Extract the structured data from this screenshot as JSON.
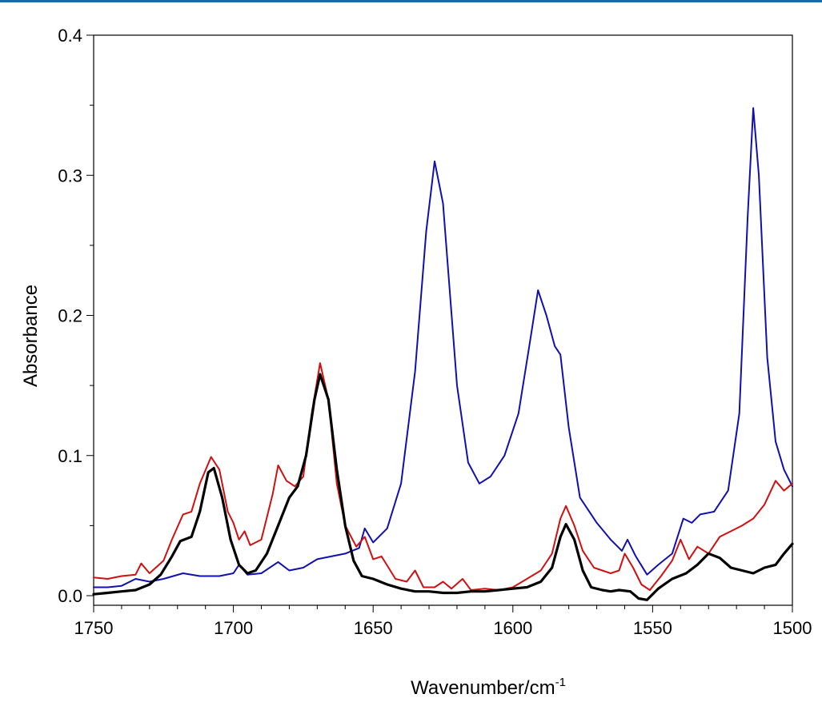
{
  "chart_data": {
    "type": "line",
    "title": "",
    "xlabel": "Wavenumber/cm",
    "xlabel_superscript": "-1",
    "ylabel": "Absorbance",
    "xlim": [
      1750,
      1500
    ],
    "ylim": [
      0,
      0.4
    ],
    "x_reversed": true,
    "grid": false,
    "legend": "none",
    "x_ticks": [
      1750,
      1700,
      1650,
      1600,
      1550,
      1500
    ],
    "x_tick_labels": [
      "1750",
      "1700",
      "1650",
      "1600",
      "1550",
      "1500"
    ],
    "y_ticks": [
      0,
      0.1,
      0.2,
      0.3,
      0.4
    ],
    "y_tick_labels": [
      "0.0",
      "0.1",
      "0.2",
      "0.3",
      "0.4"
    ],
    "series": [
      {
        "color": "#1010b0",
        "points": [
          [
            1750,
            0.006
          ],
          [
            1745,
            0.006
          ],
          [
            1740,
            0.007
          ],
          [
            1735,
            0.012
          ],
          [
            1730,
            0.01
          ],
          [
            1725,
            0.012
          ],
          [
            1718,
            0.016
          ],
          [
            1712,
            0.014
          ],
          [
            1705,
            0.014
          ],
          [
            1700,
            0.016
          ],
          [
            1698,
            0.022
          ],
          [
            1695,
            0.015
          ],
          [
            1690,
            0.016
          ],
          [
            1684,
            0.024
          ],
          [
            1680,
            0.018
          ],
          [
            1675,
            0.02
          ],
          [
            1670,
            0.026
          ],
          [
            1665,
            0.028
          ],
          [
            1660,
            0.03
          ],
          [
            1655,
            0.034
          ],
          [
            1653,
            0.048
          ],
          [
            1650,
            0.038
          ],
          [
            1645,
            0.048
          ],
          [
            1640,
            0.08
          ],
          [
            1635,
            0.16
          ],
          [
            1631,
            0.26
          ],
          [
            1628,
            0.31
          ],
          [
            1625,
            0.28
          ],
          [
            1620,
            0.15
          ],
          [
            1616,
            0.095
          ],
          [
            1612,
            0.08
          ],
          [
            1608,
            0.085
          ],
          [
            1603,
            0.1
          ],
          [
            1598,
            0.13
          ],
          [
            1594,
            0.18
          ],
          [
            1591,
            0.218
          ],
          [
            1588,
            0.2
          ],
          [
            1585,
            0.178
          ],
          [
            1583,
            0.172
          ],
          [
            1580,
            0.12
          ],
          [
            1576,
            0.07
          ],
          [
            1570,
            0.052
          ],
          [
            1565,
            0.04
          ],
          [
            1561,
            0.032
          ],
          [
            1559,
            0.04
          ],
          [
            1556,
            0.028
          ],
          [
            1552,
            0.015
          ],
          [
            1548,
            0.022
          ],
          [
            1543,
            0.03
          ],
          [
            1539,
            0.055
          ],
          [
            1536,
            0.052
          ],
          [
            1533,
            0.058
          ],
          [
            1528,
            0.06
          ],
          [
            1523,
            0.075
          ],
          [
            1519,
            0.13
          ],
          [
            1516,
            0.27
          ],
          [
            1514,
            0.348
          ],
          [
            1512,
            0.3
          ],
          [
            1509,
            0.17
          ],
          [
            1506,
            0.11
          ],
          [
            1503,
            0.09
          ],
          [
            1500,
            0.078
          ]
        ]
      },
      {
        "color": "#d01010",
        "points": [
          [
            1750,
            0.013
          ],
          [
            1745,
            0.012
          ],
          [
            1740,
            0.014
          ],
          [
            1735,
            0.015
          ],
          [
            1733,
            0.023
          ],
          [
            1730,
            0.016
          ],
          [
            1725,
            0.025
          ],
          [
            1722,
            0.04
          ],
          [
            1718,
            0.058
          ],
          [
            1715,
            0.06
          ],
          [
            1712,
            0.08
          ],
          [
            1708,
            0.099
          ],
          [
            1705,
            0.09
          ],
          [
            1702,
            0.06
          ],
          [
            1700,
            0.052
          ],
          [
            1698,
            0.04
          ],
          [
            1696,
            0.046
          ],
          [
            1694,
            0.036
          ],
          [
            1690,
            0.04
          ],
          [
            1686,
            0.072
          ],
          [
            1684,
            0.093
          ],
          [
            1681,
            0.082
          ],
          [
            1678,
            0.078
          ],
          [
            1675,
            0.085
          ],
          [
            1672,
            0.13
          ],
          [
            1669,
            0.166
          ],
          [
            1666,
            0.14
          ],
          [
            1663,
            0.08
          ],
          [
            1660,
            0.05
          ],
          [
            1656,
            0.035
          ],
          [
            1653,
            0.042
          ],
          [
            1650,
            0.026
          ],
          [
            1647,
            0.028
          ],
          [
            1642,
            0.012
          ],
          [
            1638,
            0.01
          ],
          [
            1635,
            0.018
          ],
          [
            1632,
            0.006
          ],
          [
            1628,
            0.006
          ],
          [
            1625,
            0.01
          ],
          [
            1622,
            0.005
          ],
          [
            1618,
            0.012
          ],
          [
            1615,
            0.004
          ],
          [
            1610,
            0.005
          ],
          [
            1605,
            0.004
          ],
          [
            1600,
            0.006
          ],
          [
            1595,
            0.012
          ],
          [
            1590,
            0.018
          ],
          [
            1586,
            0.03
          ],
          [
            1583,
            0.055
          ],
          [
            1581,
            0.064
          ],
          [
            1578,
            0.05
          ],
          [
            1575,
            0.032
          ],
          [
            1571,
            0.02
          ],
          [
            1568,
            0.018
          ],
          [
            1565,
            0.016
          ],
          [
            1562,
            0.018
          ],
          [
            1560,
            0.03
          ],
          [
            1557,
            0.02
          ],
          [
            1554,
            0.008
          ],
          [
            1551,
            0.004
          ],
          [
            1547,
            0.014
          ],
          [
            1543,
            0.025
          ],
          [
            1540,
            0.04
          ],
          [
            1537,
            0.026
          ],
          [
            1534,
            0.035
          ],
          [
            1530,
            0.03
          ],
          [
            1526,
            0.042
          ],
          [
            1522,
            0.046
          ],
          [
            1518,
            0.05
          ],
          [
            1514,
            0.055
          ],
          [
            1510,
            0.065
          ],
          [
            1506,
            0.082
          ],
          [
            1503,
            0.075
          ],
          [
            1500,
            0.08
          ]
        ]
      },
      {
        "color": "#000000",
        "points": [
          [
            1750,
            0.001
          ],
          [
            1745,
            0.002
          ],
          [
            1740,
            0.003
          ],
          [
            1735,
            0.004
          ],
          [
            1730,
            0.008
          ],
          [
            1726,
            0.015
          ],
          [
            1722,
            0.028
          ],
          [
            1719,
            0.039
          ],
          [
            1715,
            0.042
          ],
          [
            1712,
            0.06
          ],
          [
            1709,
            0.088
          ],
          [
            1707,
            0.091
          ],
          [
            1704,
            0.07
          ],
          [
            1701,
            0.04
          ],
          [
            1698,
            0.022
          ],
          [
            1695,
            0.016
          ],
          [
            1692,
            0.018
          ],
          [
            1688,
            0.03
          ],
          [
            1684,
            0.05
          ],
          [
            1680,
            0.07
          ],
          [
            1677,
            0.078
          ],
          [
            1674,
            0.1
          ],
          [
            1671,
            0.14
          ],
          [
            1669,
            0.158
          ],
          [
            1666,
            0.14
          ],
          [
            1663,
            0.09
          ],
          [
            1660,
            0.05
          ],
          [
            1657,
            0.025
          ],
          [
            1654,
            0.014
          ],
          [
            1650,
            0.012
          ],
          [
            1645,
            0.008
          ],
          [
            1640,
            0.005
          ],
          [
            1635,
            0.003
          ],
          [
            1630,
            0.003
          ],
          [
            1625,
            0.002
          ],
          [
            1620,
            0.002
          ],
          [
            1615,
            0.003
          ],
          [
            1610,
            0.003
          ],
          [
            1605,
            0.004
          ],
          [
            1600,
            0.005
          ],
          [
            1595,
            0.006
          ],
          [
            1590,
            0.01
          ],
          [
            1586,
            0.02
          ],
          [
            1583,
            0.042
          ],
          [
            1581,
            0.051
          ],
          [
            1578,
            0.04
          ],
          [
            1575,
            0.018
          ],
          [
            1572,
            0.006
          ],
          [
            1568,
            0.004
          ],
          [
            1565,
            0.003
          ],
          [
            1562,
            0.004
          ],
          [
            1558,
            0.003
          ],
          [
            1555,
            -0.002
          ],
          [
            1552,
            -0.003
          ],
          [
            1548,
            0.005
          ],
          [
            1543,
            0.012
          ],
          [
            1538,
            0.016
          ],
          [
            1534,
            0.022
          ],
          [
            1530,
            0.03
          ],
          [
            1526,
            0.027
          ],
          [
            1522,
            0.02
          ],
          [
            1518,
            0.018
          ],
          [
            1514,
            0.016
          ],
          [
            1510,
            0.02
          ],
          [
            1506,
            0.022
          ],
          [
            1503,
            0.03
          ],
          [
            1500,
            0.037
          ]
        ]
      }
    ]
  }
}
